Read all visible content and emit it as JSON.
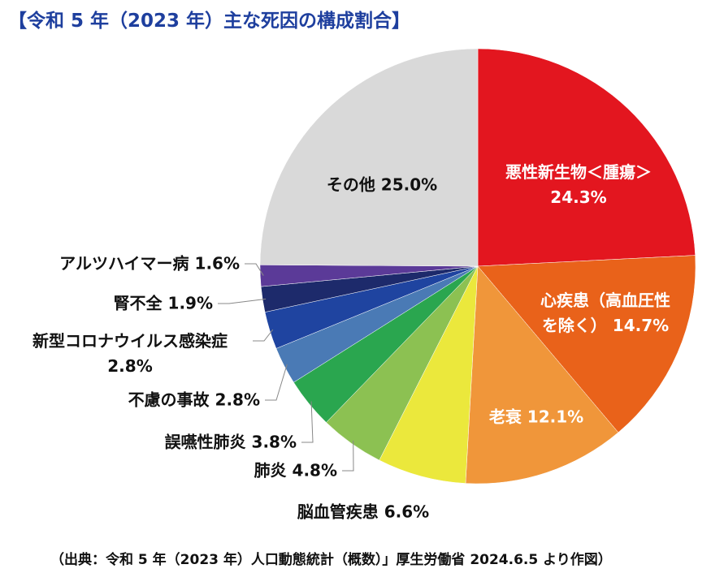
{
  "chart_data": {
    "type": "pie",
    "title": "【令和 5 年（2023 年）主な死因の構成割合】",
    "source": "（出典：令和 5 年（2023 年）人口動態統計（概数）」厚生労働省 2024.6.5 より作図）",
    "categories": [
      "悪性新生物＜腫瘍＞",
      "心疾患（高血圧性を除く）",
      "老衰",
      "脳血管疾患",
      "肺炎",
      "誤嚥性肺炎",
      "不慮の事故",
      "新型コロナウイルス感染症",
      "腎不全",
      "アルツハイマー病",
      "その他"
    ],
    "values": [
      24.3,
      14.7,
      12.1,
      6.6,
      4.8,
      3.8,
      2.8,
      2.8,
      1.9,
      1.6,
      25.0
    ],
    "value_labels": [
      "24.3%",
      "14.7%",
      "12.1%",
      "6.6%",
      "4.8%",
      "3.8%",
      "2.8%",
      "2.8%",
      "1.9%",
      "1.6%",
      "25.0%"
    ],
    "colors": [
      "#e3161f",
      "#e9621a",
      "#f0963a",
      "#ebe83c",
      "#8cc152",
      "#2aa64f",
      "#4a7ab5",
      "#1f44a0",
      "#1d2a6b",
      "#5b3a98",
      "#d9d9d9"
    ]
  }
}
